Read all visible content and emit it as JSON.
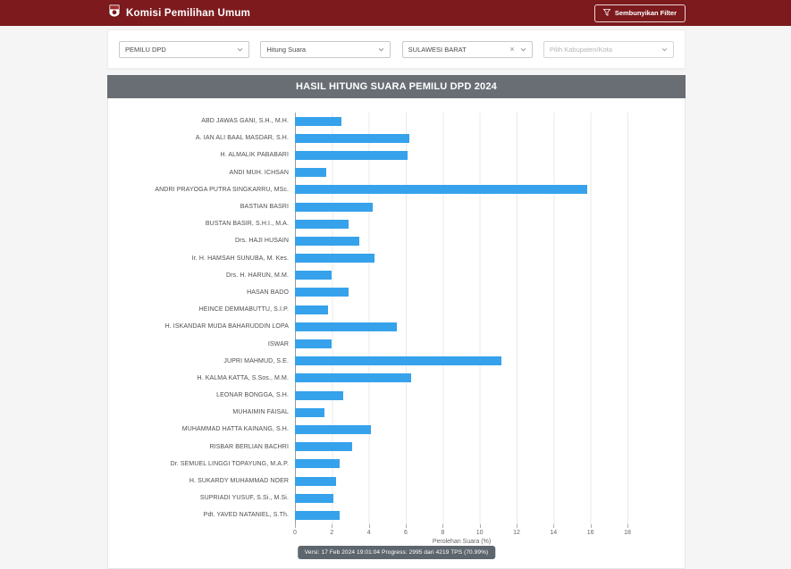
{
  "header": {
    "brand": "Komisi Pemilihan Umum",
    "filter_button": "Sembunyikan Filter"
  },
  "icons": {
    "brand": "kpu-logo-icon",
    "filter_button": "funnel-icon",
    "select_chevron": "chevron-down-icon",
    "select_clear": "close-icon"
  },
  "filters": [
    {
      "name": "pemilu-type",
      "value": "PEMILU DPD",
      "is_placeholder": false,
      "clearable": false
    },
    {
      "name": "stage",
      "value": "Hitung Suara",
      "is_placeholder": false,
      "clearable": false
    },
    {
      "name": "province",
      "value": "SULAWESI BARAT",
      "is_placeholder": false,
      "clearable": true,
      "clear_glyph": "×"
    },
    {
      "name": "kabupaten",
      "value": "Pilih Kabupaten/Kota",
      "is_placeholder": true,
      "clearable": false
    }
  ],
  "chart": {
    "title": "HASIL HITUNG SUARA PEMILU DPD 2024",
    "footer": "Versi: 17 Feb 2024 19:01:04 Progress: 2995 dari 4219 TPS (70.99%)"
  },
  "chart_data": {
    "type": "bar",
    "orientation": "horizontal",
    "title": "HASIL HITUNG SUARA PEMILU DPD 2024",
    "xlabel": "Perolehan Suara (%)",
    "xlim": [
      0,
      18
    ],
    "xticks": [
      0,
      2,
      4,
      6,
      8,
      10,
      12,
      14,
      16,
      18
    ],
    "grid": true,
    "bar_color": "#36a2eb",
    "categories": [
      "ABD JAWAS GANI, S.H., M.H.",
      "A. IAN ALI BAAL MASDAR, S.H.",
      "H. ALMALIK PABABARI",
      "ANDI MUH. ICHSAN",
      "ANDRI PRAYOGA PUTRA SINGKARRU, MSc.",
      "BASTIAN BASRI",
      "BUSTAN BASIR, S.H.I., M.A.",
      "Drs. HAJI HUSAIN",
      "Ir. H. HAMSAH SUNUBA, M. Kes.",
      "Drs. H. HARUN, M.M.",
      "HASAN BADO",
      "HEINCE DEMMABUTTU, S.I.P.",
      "H. ISKANDAR MUDA BAHARUDDIN LOPA",
      "ISWAR",
      "JUPRI MAHMUD, S.E.",
      "H. KALMA KATTA, S.Sos., M.M.",
      "LEONAR BONGGA, S.H.",
      "MUHAIMIN FAISAL",
      "MUHAMMAD HATTA KAINANG, S.H.",
      "RISBAR BERLIAN BACHRI",
      "Dr. SEMUEL LINGGI TOPAYUNG, M.A.P.",
      "H. SUKARDY MUHAMMAD NOER",
      "SUPRIADI YUSUF, S.Si., M.Si.",
      "Pdt. YAVED NATANIEL, S.Th."
    ],
    "values": [
      2.5,
      6.2,
      6.1,
      1.7,
      15.8,
      4.2,
      2.9,
      3.5,
      4.3,
      2.0,
      2.9,
      1.8,
      5.5,
      2.0,
      11.2,
      6.3,
      2.6,
      1.6,
      4.1,
      3.1,
      2.4,
      2.2,
      2.1,
      2.4
    ]
  },
  "colors": {
    "header_bg": "#7c1a1d",
    "title_bar_bg": "#696e75",
    "bar_color": "#36a2eb",
    "badge_bg": "#5d666d"
  }
}
